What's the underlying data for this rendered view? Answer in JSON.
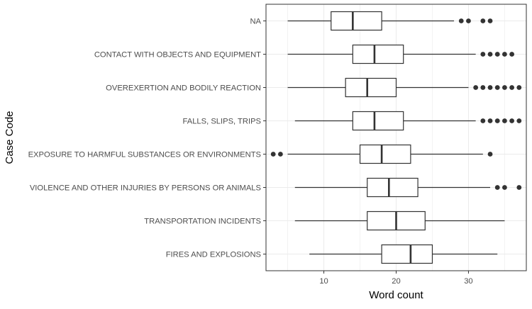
{
  "chart_data": {
    "type": "boxplot",
    "orientation": "horizontal",
    "xlabel": "Word count",
    "ylabel": "Case Code",
    "xlim": [
      2,
      38
    ],
    "x_ticks": [
      10,
      20,
      30
    ],
    "grid": true,
    "legend": "none",
    "colors": {
      "panel_border": "#333333",
      "grid": "#ebebeb",
      "box_stroke": "#333333",
      "outlier": "#333333",
      "text": "#4d4d4d",
      "title_text": "#000000"
    },
    "categories": [
      {
        "label": "NA",
        "min": 5,
        "q1": 11,
        "median": 14,
        "q3": 18,
        "max": 28,
        "outliers": [
          29,
          30,
          32,
          33
        ]
      },
      {
        "label": "CONTACT WITH OBJECTS AND EQUIPMENT",
        "min": 5,
        "q1": 14,
        "median": 17,
        "q3": 21,
        "max": 31,
        "outliers": [
          32,
          33,
          34,
          35,
          36
        ]
      },
      {
        "label": "OVEREXERTION AND BODILY REACTION",
        "min": 5,
        "q1": 13,
        "median": 16,
        "q3": 20,
        "max": 30,
        "outliers": [
          31,
          32,
          33,
          34,
          35,
          36,
          37
        ]
      },
      {
        "label": "FALLS, SLIPS, TRIPS",
        "min": 6,
        "q1": 14,
        "median": 17,
        "q3": 21,
        "max": 31,
        "outliers": [
          32,
          33,
          34,
          35,
          36,
          37
        ]
      },
      {
        "label": "EXPOSURE TO HARMFUL SUBSTANCES OR ENVIRONMENTS",
        "min": 5,
        "q1": 15,
        "median": 18,
        "q3": 22,
        "max": 32,
        "outliers": [
          3,
          4,
          33
        ]
      },
      {
        "label": "VIOLENCE AND OTHER INJURIES BY PERSONS OR ANIMALS",
        "min": 6,
        "q1": 16,
        "median": 19,
        "q3": 23,
        "max": 33,
        "outliers": [
          34,
          35,
          37
        ]
      },
      {
        "label": "TRANSPORTATION INCIDENTS",
        "min": 6,
        "q1": 16,
        "median": 20,
        "q3": 24,
        "max": 35,
        "outliers": []
      },
      {
        "label": "FIRES AND EXPLOSIONS",
        "min": 8,
        "q1": 18,
        "median": 22,
        "q3": 25,
        "max": 34,
        "outliers": []
      }
    ]
  }
}
